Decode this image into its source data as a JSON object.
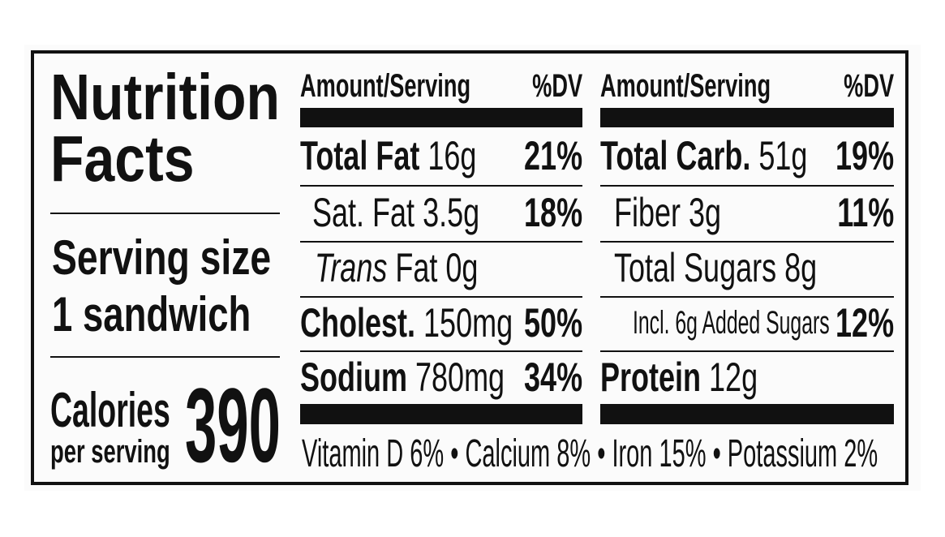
{
  "title": "Nutrition Facts",
  "serving": {
    "label": "Serving size",
    "value": "1 sandwich"
  },
  "calories": {
    "label": "Calories",
    "sublabel": "per serving",
    "value": "390"
  },
  "columns": [
    {
      "header": {
        "amount": "Amount/Serving",
        "dv": "%DV"
      },
      "rows": [
        {
          "name": "Total Fat",
          "amount": "16g",
          "dv": "21%"
        },
        {
          "name": "Sat. Fat",
          "amount": "3.5g",
          "dv": "18%"
        },
        {
          "prefix": "Trans",
          "name": "Fat",
          "amount": "0g"
        },
        {
          "name": "Cholest.",
          "amount": "150mg",
          "dv": "50%"
        },
        {
          "name": "Sodium",
          "amount": "780mg",
          "dv": "34%"
        }
      ]
    },
    {
      "header": {
        "amount": "Amount/Serving",
        "dv": "%DV"
      },
      "rows": [
        {
          "name": "Total Carb.",
          "amount": "51g",
          "dv": "19%"
        },
        {
          "name": "Fiber",
          "amount": "3g",
          "dv": "11%"
        },
        {
          "name": "Total Sugars",
          "amount": "8g"
        },
        {
          "name": "Incl. 6g Added Sugars",
          "dv": "12%"
        },
        {
          "name": "Protein",
          "amount": "12g"
        }
      ]
    }
  ],
  "vitamins": "Vitamin D 6% • Calcium 8% • Iron 15% • Potassium 2%"
}
